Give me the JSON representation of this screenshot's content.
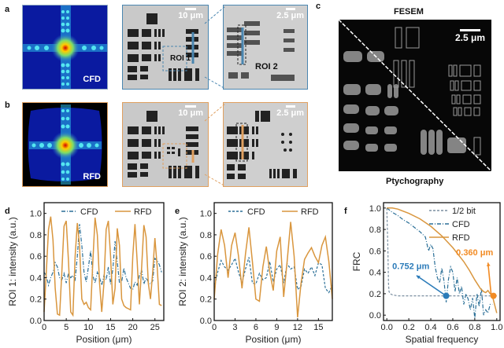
{
  "panels": {
    "a": {
      "label": "a",
      "diffraction_label": "CFD",
      "scale1": "10 μm",
      "roi1": "ROI 1",
      "scale2": "2.5 μm",
      "roi2": "ROI 2",
      "frame_color": "#4a86b0"
    },
    "b": {
      "label": "b",
      "diffraction_label": "RFD",
      "scale1": "10 μm",
      "scale2": "2.5 μm",
      "frame_color": "#e0a060"
    },
    "c": {
      "label": "c",
      "top_title": "FESEM",
      "bottom_title": "Ptychography",
      "scale": "2.5 μm"
    }
  },
  "colors": {
    "cfd": "#2a6f97",
    "rfd": "#d9963e",
    "half_bit": "#7a8ea0",
    "marker_cfd": "#2b7bb9",
    "marker_rfd": "#f28b24"
  },
  "chart_data": [
    {
      "id": "d",
      "panel_label": "d",
      "type": "line",
      "xlabel": "Position (μm)",
      "ylabel": "ROI 1: intensity (a.u.)",
      "xlim": [
        0,
        27
      ],
      "ylim": [
        0,
        1.1
      ],
      "xticks": [
        0,
        5,
        10,
        15,
        20,
        25
      ],
      "yticks": [
        0.0,
        0.2,
        0.4,
        0.6,
        0.8,
        1.0
      ],
      "yticklabels": [
        "0.0",
        "0.2",
        "0.4",
        "0.6",
        "0.8",
        "1.0"
      ],
      "legend": [
        "CFD",
        "RFD"
      ],
      "legend_position": "top",
      "series": [
        {
          "name": "CFD",
          "style": "dash-dot",
          "x": [
            0,
            0.5,
            1,
            1.5,
            2,
            2.5,
            3,
            3.5,
            4,
            4.5,
            5,
            5.5,
            6,
            6.5,
            7,
            7.5,
            8,
            8.5,
            9,
            9.5,
            10,
            10.5,
            11,
            11.5,
            12,
            12.5,
            13,
            13.5,
            14,
            14.5,
            15,
            15.5,
            16,
            16.5,
            17,
            17.5,
            18,
            18.5,
            19,
            19.5,
            20,
            20.5,
            21,
            21.5,
            22,
            22.5,
            23,
            23.5,
            24,
            24.5,
            25,
            25.5,
            26,
            26.5
          ],
          "y": [
            0.45,
            0.42,
            0.33,
            0.4,
            0.45,
            0.54,
            0.5,
            0.4,
            0.38,
            0.44,
            0.35,
            0.44,
            0.4,
            0.42,
            0.38,
            0.6,
            0.9,
            0.7,
            0.45,
            0.36,
            0.5,
            0.65,
            0.42,
            0.35,
            0.45,
            0.4,
            0.33,
            0.42,
            0.38,
            0.5,
            0.34,
            0.48,
            0.74,
            0.55,
            0.35,
            0.36,
            0.49,
            0.4,
            0.35,
            0.3,
            0.29,
            0.36,
            0.33,
            0.42,
            0.47,
            0.34,
            0.4,
            0.36,
            0.34,
            0.37,
            0.58,
            0.56,
            0.52,
            0.45
          ]
        },
        {
          "name": "RFD",
          "style": "solid",
          "x": [
            0,
            0.5,
            1,
            1.5,
            2,
            2.5,
            3,
            3.5,
            4,
            4.5,
            5,
            5.5,
            6,
            6.5,
            7,
            7.5,
            8,
            8.5,
            9,
            9.5,
            10,
            10.5,
            11,
            11.5,
            12,
            12.5,
            13,
            13.5,
            14,
            14.5,
            15,
            15.5,
            16,
            16.5,
            17,
            17.5,
            18,
            18.5,
            19,
            19.5,
            20,
            20.5,
            21,
            21.5,
            22,
            22.5,
            23,
            23.5,
            24,
            24.5,
            25,
            25.5,
            26,
            26.5
          ],
          "y": [
            0.08,
            0.45,
            0.85,
            0.97,
            0.75,
            0.3,
            0.06,
            0.05,
            0.45,
            0.88,
            0.93,
            0.55,
            0.08,
            0.05,
            0.6,
            0.91,
            0.7,
            0.2,
            0.15,
            0.17,
            0.12,
            0.1,
            0.55,
            0.96,
            0.8,
            0.35,
            0.08,
            0.35,
            0.85,
            0.93,
            0.6,
            0.15,
            0.3,
            0.86,
            0.7,
            0.2,
            0.14,
            0.12,
            0.11,
            0.1,
            0.6,
            0.9,
            0.55,
            0.15,
            0.5,
            0.89,
            0.78,
            0.35,
            0.2,
            0.45,
            0.77,
            0.5,
            0.15,
            0.14
          ]
        }
      ]
    },
    {
      "id": "e",
      "panel_label": "e",
      "type": "line",
      "xlabel": "Position (μm)",
      "ylabel": "ROI 2: intensity (a.u.)",
      "xlim": [
        0,
        17
      ],
      "ylim": [
        0,
        1.1
      ],
      "xticks": [
        0,
        3,
        6,
        9,
        12,
        15
      ],
      "yticks": [
        0.0,
        0.2,
        0.4,
        0.6,
        0.8,
        1.0
      ],
      "yticklabels": [
        "0.0",
        "0.2",
        "0.4",
        "0.6",
        "0.8",
        "1.0"
      ],
      "legend": [
        "CFD",
        "RFD"
      ],
      "legend_position": "top",
      "series": [
        {
          "name": "CFD",
          "style": "dashed",
          "x": [
            0,
            0.5,
            1,
            1.5,
            2,
            2.5,
            3,
            3.5,
            4,
            4.5,
            5,
            5.5,
            6,
            6.5,
            7,
            7.5,
            8,
            8.5,
            9,
            9.5,
            10,
            10.5,
            11,
            11.5,
            12,
            12.5,
            13,
            13.5,
            14,
            14.5,
            15,
            15.5,
            16,
            16.5,
            17
          ],
          "y": [
            0.3,
            0.45,
            0.56,
            0.5,
            0.47,
            0.52,
            0.58,
            0.45,
            0.35,
            0.48,
            0.59,
            0.35,
            0.34,
            0.44,
            0.38,
            0.4,
            0.55,
            0.36,
            0.48,
            0.52,
            0.35,
            0.53,
            0.48,
            0.5,
            0.29,
            0.32,
            0.48,
            0.44,
            0.5,
            0.42,
            0.54,
            0.52,
            0.3,
            0.26,
            0.33
          ]
        },
        {
          "name": "RFD",
          "style": "solid",
          "x": [
            0,
            0.5,
            1,
            1.5,
            2,
            2.5,
            3,
            3.5,
            4,
            4.5,
            5,
            5.5,
            6,
            6.5,
            7,
            7.5,
            8,
            8.5,
            9,
            9.5,
            10,
            10.5,
            11,
            11.5,
            12,
            12.5,
            13,
            13.5,
            14,
            14.5,
            15,
            15.5,
            16,
            16.5,
            17
          ],
          "y": [
            0.2,
            0.62,
            0.85,
            0.7,
            0.4,
            0.7,
            0.82,
            0.6,
            0.3,
            0.62,
            0.87,
            0.55,
            0.2,
            0.18,
            0.5,
            0.69,
            0.45,
            0.28,
            0.65,
            0.78,
            0.22,
            0.55,
            0.92,
            0.6,
            0.03,
            0.35,
            0.57,
            0.63,
            0.68,
            0.6,
            0.54,
            0.7,
            0.78,
            0.55,
            0.2
          ]
        }
      ]
    },
    {
      "id": "f",
      "panel_label": "f",
      "type": "line",
      "xlabel": "Spatial frequency",
      "ylabel": "FRC",
      "xlim": [
        -0.03,
        1.03
      ],
      "ylim": [
        -0.05,
        1.05
      ],
      "xticks": [
        0.0,
        0.2,
        0.4,
        0.6,
        0.8,
        1.0
      ],
      "xticklabels": [
        "0.0",
        "0.2",
        "0.4",
        "0.6",
        "0.8",
        "1.0"
      ],
      "yticks": [
        0.0,
        0.2,
        0.4,
        0.6,
        0.8,
        1.0
      ],
      "yticklabels": [
        "0.0",
        "0.2",
        "0.4",
        "0.6",
        "0.8",
        "1.0"
      ],
      "legend": [
        "1/2 bit",
        "CFD",
        "RFD"
      ],
      "legend_position": "top-right",
      "series": [
        {
          "name": "1/2 bit",
          "style": "dashed",
          "x": [
            0,
            0.01,
            0.015,
            0.02,
            0.03,
            0.05,
            0.1,
            0.2,
            0.4,
            0.6,
            0.8,
            1.0
          ],
          "y": [
            1.0,
            0.6,
            0.3,
            0.22,
            0.2,
            0.19,
            0.18,
            0.18,
            0.18,
            0.18,
            0.18,
            0.18
          ]
        },
        {
          "name": "CFD",
          "style": "dash-dot",
          "x": [
            0,
            0.05,
            0.1,
            0.15,
            0.2,
            0.25,
            0.3,
            0.35,
            0.38,
            0.4,
            0.42,
            0.44,
            0.46,
            0.48,
            0.5,
            0.52,
            0.54,
            0.56,
            0.58,
            0.6,
            0.62,
            0.64,
            0.66,
            0.68,
            0.7,
            0.72,
            0.74,
            0.76,
            0.78,
            0.8,
            0.82,
            0.84,
            0.86,
            0.88,
            0.9,
            0.92,
            0.94,
            0.96
          ],
          "y": [
            1.0,
            0.96,
            0.93,
            0.89,
            0.86,
            0.82,
            0.78,
            0.73,
            0.6,
            0.66,
            0.62,
            0.45,
            0.35,
            0.3,
            0.44,
            0.32,
            0.12,
            0.33,
            0.45,
            0.4,
            0.22,
            0.35,
            0.2,
            0.27,
            0.1,
            0.2,
            0.15,
            0.05,
            0.16,
            -0.03,
            0.2,
            0.08,
            0.25,
            0.0,
            0.05,
            0.02,
            0.1,
            0.1
          ]
        },
        {
          "name": "RFD",
          "style": "solid",
          "x": [
            0,
            0.05,
            0.1,
            0.2,
            0.3,
            0.4,
            0.5,
            0.6,
            0.7,
            0.75,
            0.8,
            0.85,
            0.88,
            0.9,
            0.92,
            0.94,
            0.96,
            0.98,
            1.0
          ],
          "y": [
            1.0,
            1.0,
            0.99,
            0.95,
            0.9,
            0.83,
            0.74,
            0.63,
            0.5,
            0.42,
            0.33,
            0.25,
            0.22,
            0.21,
            0.23,
            0.2,
            0.18,
            0.1,
            0.02
          ]
        }
      ],
      "annotations": [
        {
          "text": "0.752 μm",
          "series": "CFD",
          "marker": [
            0.54,
            0.18
          ],
          "arrow_to": [
            0.27,
            0.37
          ]
        },
        {
          "text": "0.360 μm",
          "series": "RFD",
          "marker": [
            0.97,
            0.18
          ],
          "arrow_to": [
            0.92,
            0.49
          ]
        }
      ]
    }
  ]
}
